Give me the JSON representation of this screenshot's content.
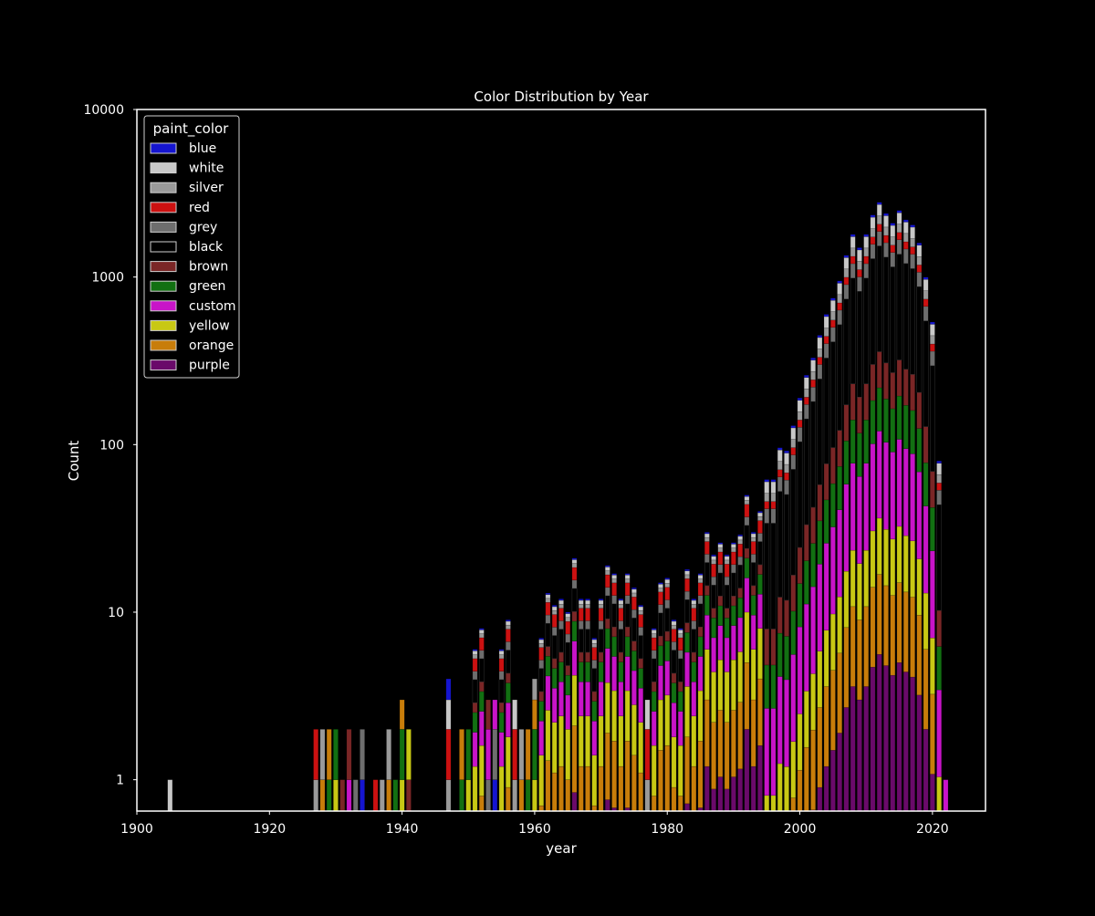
{
  "chart_data": {
    "type": "bar",
    "stacked": true,
    "title": "Color Distribution by Year",
    "xlabel": "year",
    "ylabel": "Count",
    "yscale": "log",
    "xlim": [
      1900,
      2028
    ],
    "ylim": [
      0.65,
      10000
    ],
    "x_ticks": [
      "1900",
      "1920",
      "1940",
      "1960",
      "1980",
      "2000",
      "2020"
    ],
    "y_ticks": [
      "1",
      "10",
      "100",
      "1000",
      "10000"
    ],
    "grid": false,
    "legend_title": "paint_color",
    "legend_position": "top-left",
    "series": [
      {
        "name": "blue",
        "color": "#1515d0"
      },
      {
        "name": "white",
        "color": "#c8c8c8"
      },
      {
        "name": "silver",
        "color": "#9a9a9a"
      },
      {
        "name": "red",
        "color": "#cc1111"
      },
      {
        "name": "grey",
        "color": "#6e6e6e"
      },
      {
        "name": "black",
        "color": "#000000"
      },
      {
        "name": "brown",
        "color": "#7a2626"
      },
      {
        "name": "green",
        "color": "#127012"
      },
      {
        "name": "custom",
        "color": "#c814c8"
      },
      {
        "name": "yellow",
        "color": "#c8c814"
      },
      {
        "name": "orange",
        "color": "#c87d0a"
      },
      {
        "name": "purple",
        "color": "#6a0a6a"
      }
    ],
    "years": [
      1905,
      1927,
      1928,
      1929,
      1930,
      1931,
      1932,
      1933,
      1934,
      1936,
      1937,
      1938,
      1939,
      1940,
      1941,
      1947,
      1949,
      1950,
      1951,
      1952,
      1953,
      1954,
      1955,
      1956,
      1957,
      1958,
      1959,
      1960,
      1961,
      1962,
      1963,
      1964,
      1965,
      1966,
      1967,
      1968,
      1969,
      1970,
      1971,
      1972,
      1973,
      1974,
      1975,
      1976,
      1977,
      1978,
      1979,
      1980,
      1981,
      1982,
      1983,
      1984,
      1985,
      1986,
      1987,
      1988,
      1989,
      1990,
      1991,
      1992,
      1993,
      1994,
      1995,
      1996,
      1997,
      1998,
      1999,
      2000,
      2001,
      2002,
      2003,
      2004,
      2005,
      2006,
      2007,
      2008,
      2009,
      2010,
      2011,
      2012,
      2013,
      2014,
      2015,
      2016,
      2017,
      2018,
      2019,
      2020,
      2021,
      2022
    ],
    "totals": [
      1,
      2,
      2,
      2,
      2,
      1,
      2,
      1,
      2,
      1,
      1,
      2,
      1,
      3,
      2,
      4,
      2,
      2,
      6,
      8,
      3,
      3,
      6,
      9,
      3,
      2,
      2,
      4,
      7,
      13,
      11,
      12,
      10,
      21,
      12,
      12,
      7,
      12,
      19,
      17,
      12,
      17,
      14,
      11,
      3,
      8,
      15,
      16,
      9,
      8,
      18,
      12,
      17,
      30,
      22,
      26,
      22,
      26,
      29,
      50,
      30,
      40,
      62,
      62,
      96,
      92,
      130,
      190,
      260,
      330,
      450,
      600,
      750,
      950,
      1350,
      1800,
      1500,
      1800,
      2350,
      2800,
      2400,
      2100,
      2500,
      2200,
      2050,
      1600,
      1000,
      540,
      80,
      1
    ],
    "note_composition": "stacked by paint_color; per-color counts estimated from bar segments"
  }
}
